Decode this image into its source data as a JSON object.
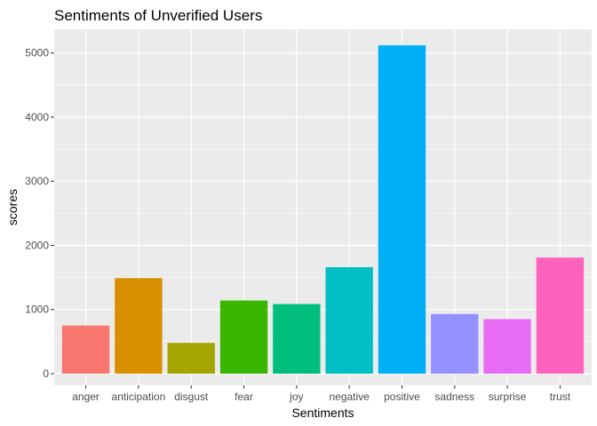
{
  "chart_data": {
    "type": "bar",
    "title": "Sentiments of Unverified Users",
    "xlabel": "Sentiments",
    "ylabel": "scores",
    "categories": [
      "anger",
      "anticipation",
      "disgust",
      "fear",
      "joy",
      "negative",
      "positive",
      "sadness",
      "surprise",
      "trust"
    ],
    "values": [
      750,
      1490,
      480,
      1140,
      1085,
      1660,
      5120,
      930,
      850,
      1810
    ],
    "colors": [
      "#F8766D",
      "#D89000",
      "#A3A500",
      "#39B600",
      "#00BF7D",
      "#00BFC4",
      "#00B0F6",
      "#9590FF",
      "#E76BF3",
      "#FF62BC"
    ],
    "ylim": [
      -180,
      5370
    ],
    "yticks": [
      0,
      1000,
      2000,
      3000,
      4000,
      5000
    ],
    "grid": true,
    "legend": "none",
    "panel_background": "#EBEBEB"
  }
}
